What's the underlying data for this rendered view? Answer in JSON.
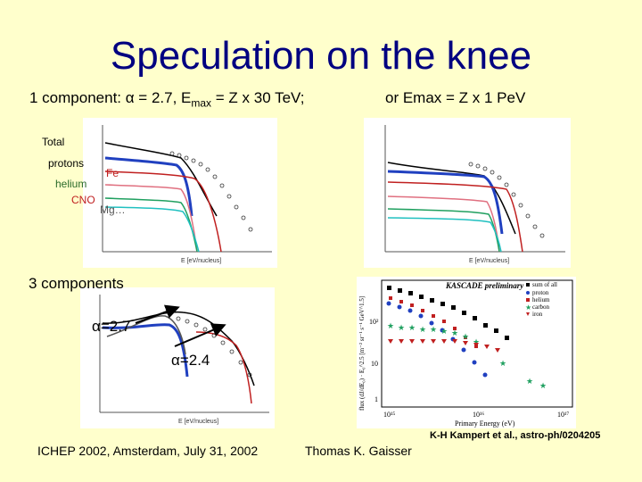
{
  "title": "Speculation on the knee",
  "subtitle_left": {
    "prefix": "1 component: ",
    "alpha": "α",
    "eq": " = 2.7, E",
    "sub": "max",
    "suffix": " = Z x 30 TeV;"
  },
  "subtitle_right": "or Emax = Z x 1 PeV",
  "panel_labels": {
    "total": "Total",
    "protons": "protons",
    "fe": "Fe",
    "helium": "helium",
    "cno": "CNO",
    "mg": "Mg…"
  },
  "three_components": "3 components",
  "alpha_27": "α=2.7",
  "alpha_24": "α=2.4",
  "axis_x": "E  [eV/nucleus]",
  "kascade": {
    "title": "KASCADE preliminary",
    "legend": [
      "sum of all",
      "proton",
      "helium",
      "carbon",
      "iron"
    ],
    "xlabel": "Primary Energy (eV)",
    "ylabel": "flux (dJ/dE₀) · E₀^2.5 [m⁻² sr⁻¹ s⁻¹ GeV^1.5]",
    "x_ticks": [
      "10¹⁵",
      "10¹⁶",
      "10¹⁷"
    ],
    "y_ticks": [
      "10²",
      "10",
      "1"
    ]
  },
  "footer_left": "ICHEP 2002, Amsterdam, July 31, 2002",
  "footer_mid": "Thomas K. Gaisser",
  "footer_ref": "K-H Kampert et al., astro-ph/0204205",
  "colors": {
    "title": "#000080",
    "background": "#ffffcc",
    "total": "#000000",
    "protons": "#2040c0",
    "helium": "#e07080",
    "cno": "#20a060",
    "mg": "#20c0c0",
    "fe": "#c02020"
  }
}
